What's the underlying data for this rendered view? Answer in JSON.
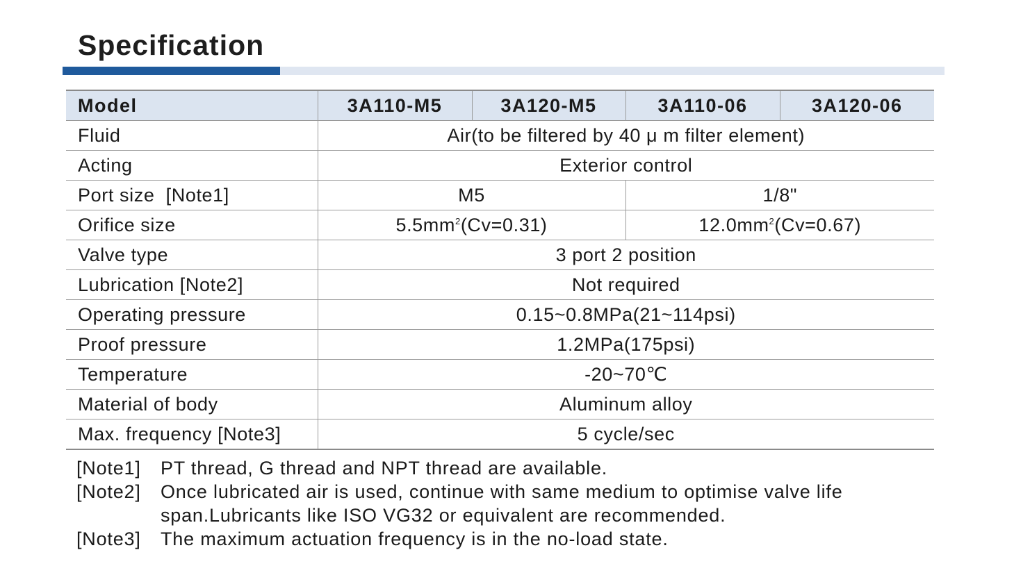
{
  "title": "Specification",
  "header": {
    "label": "Model",
    "models": [
      "3A110-M5",
      "3A120-M5",
      "3A110-06",
      "3A120-06"
    ]
  },
  "rows": {
    "fluid": {
      "label": "Fluid",
      "value": "Air(to be filtered by 40 μ m filter element)"
    },
    "acting": {
      "label": "Acting",
      "value": "Exterior control"
    },
    "port_size": {
      "label": "Port size  [Note1]",
      "value_a": "M5",
      "value_b": "1/8\""
    },
    "orifice_size": {
      "label": "Orifice size",
      "value_a_pre": "5.5mm",
      "value_a_sup": "2",
      "value_a_post": "(Cv=0.31)",
      "value_b_pre": "12.0mm",
      "value_b_sup": "2",
      "value_b_post": "(Cv=0.67)"
    },
    "valve_type": {
      "label": "Valve type",
      "value": "3 port 2 position"
    },
    "lubrication": {
      "label": "Lubrication [Note2]",
      "value": "Not required"
    },
    "operating_pressure": {
      "label": "Operating pressure",
      "value": "0.15~0.8MPa(21~114psi)"
    },
    "proof_pressure": {
      "label": "Proof pressure",
      "value": "1.2MPa(175psi)"
    },
    "temperature": {
      "label": "Temperature",
      "value": "-20~70℃"
    },
    "material": {
      "label": "Material of body",
      "value": "Aluminum alloy"
    },
    "max_frequency": {
      "label": "Max. frequency [Note3]",
      "value": "5 cycle/sec"
    }
  },
  "notes": [
    {
      "key": "[Note1]",
      "text": "PT thread, G thread and NPT thread are available."
    },
    {
      "key": "[Note2]",
      "text": "Once lubricated air is used, continue with same medium to optimise valve life span.Lubricants like ISO VG32 or  equivalent are recommended."
    },
    {
      "key": "[Note3]",
      "text": "The maximum actuation frequency is in the no-load state."
    }
  ],
  "colors": {
    "accent_bar": "#1f5a9c",
    "light_bar": "#dfe6f1",
    "header_bg": "#dbe4f0"
  }
}
